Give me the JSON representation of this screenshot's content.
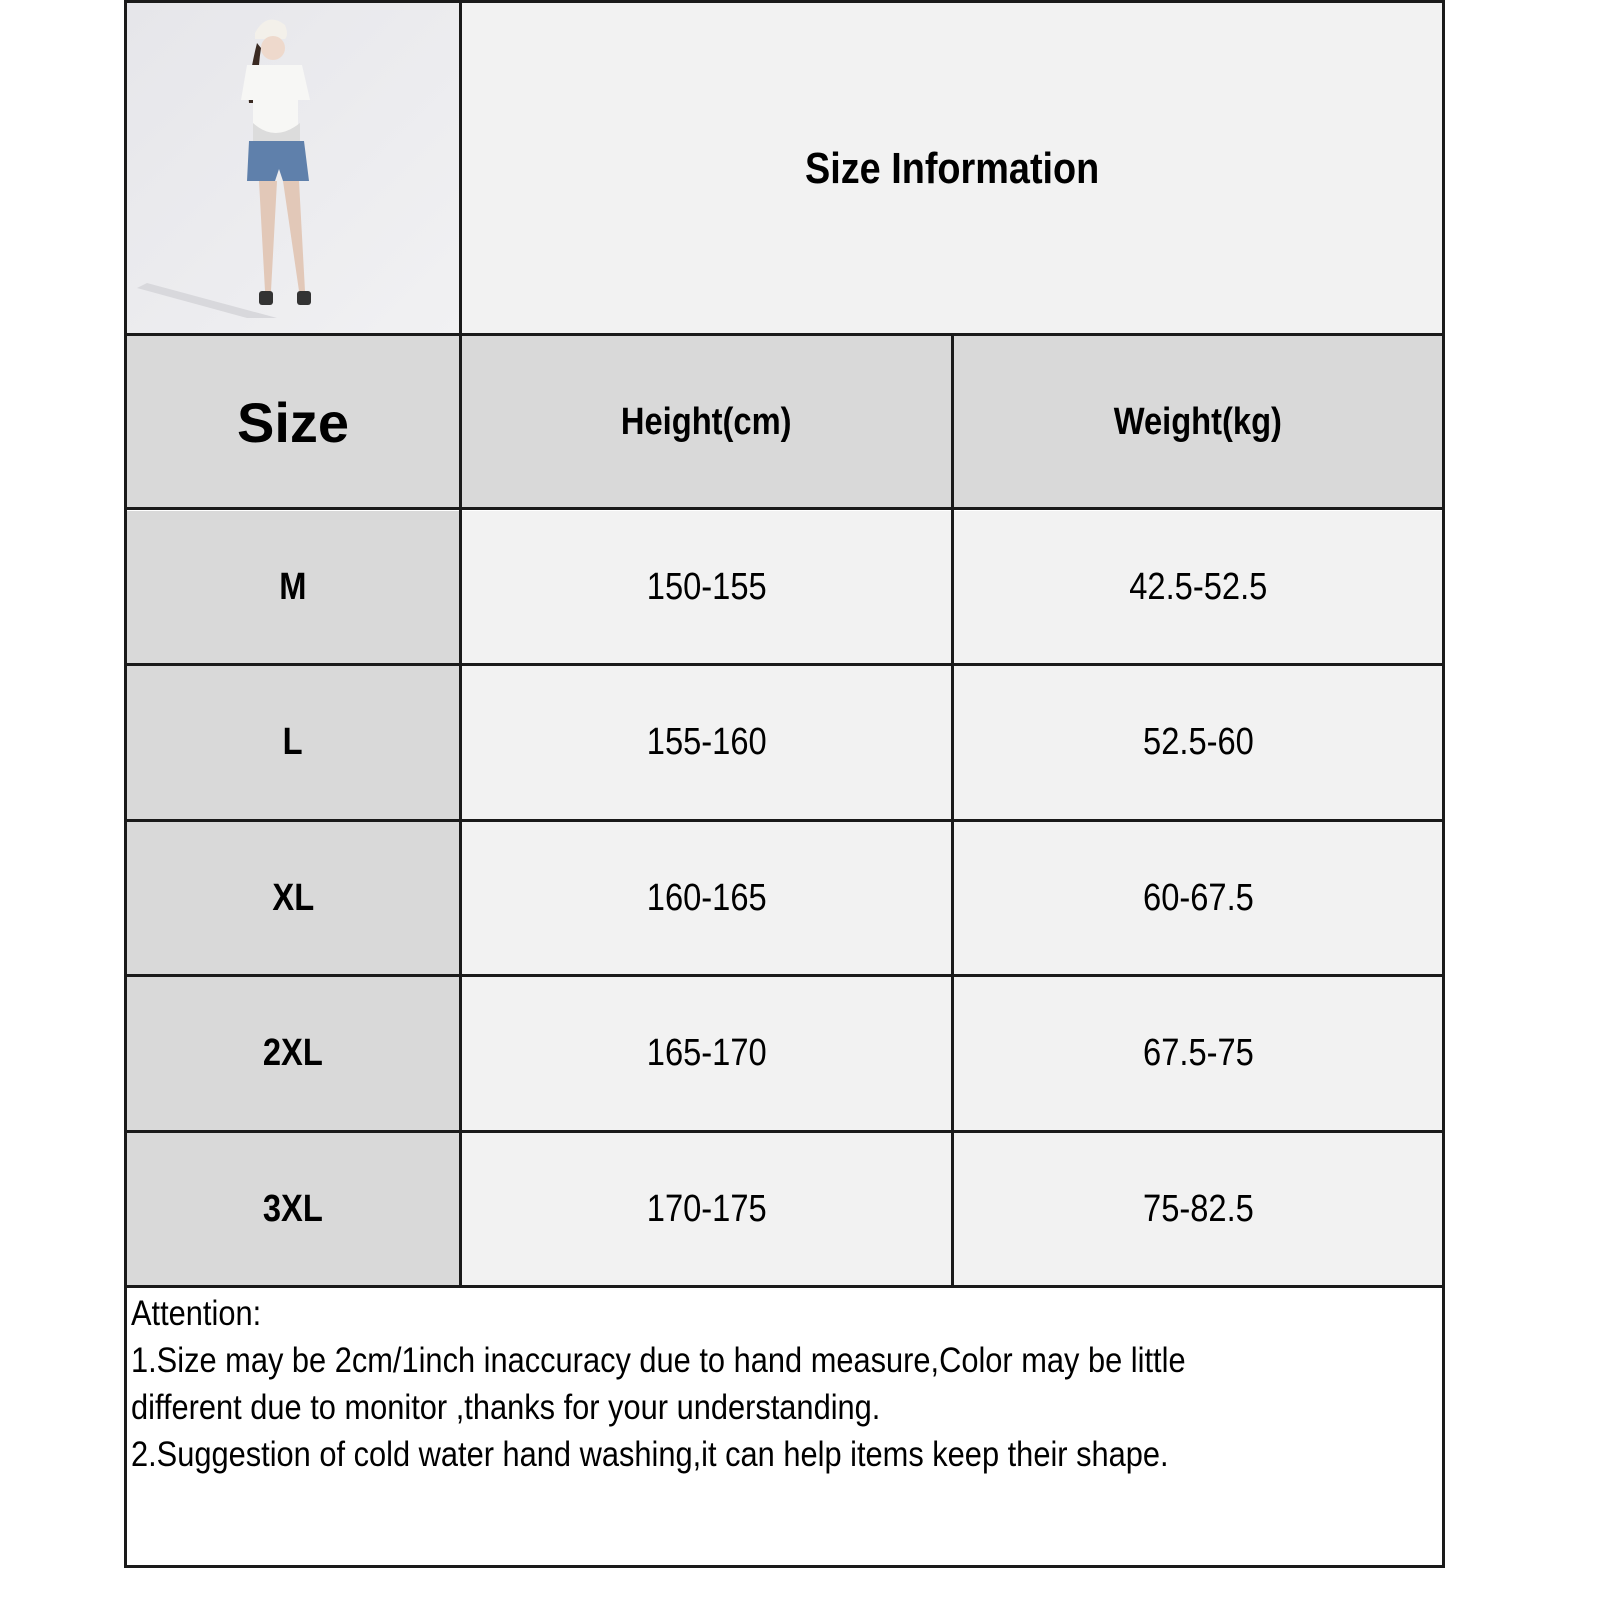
{
  "title": "Size Information",
  "product_photo": {
    "alt": "model wearing white t-shirt and blue denim maternity shorts"
  },
  "columns": [
    "Size",
    "Height(cm)",
    "Weight(kg)"
  ],
  "rows": [
    {
      "size": "M",
      "height": "150-155",
      "weight": "42.5-52.5"
    },
    {
      "size": "L",
      "height": "155-160",
      "weight": "52.5-60"
    },
    {
      "size": "XL",
      "height": "160-165",
      "weight": "60-67.5"
    },
    {
      "size": "2XL",
      "height": "165-170",
      "weight": "67.5-75"
    },
    {
      "size": "3XL",
      "height": "170-175",
      "weight": "75-82.5"
    }
  ],
  "notes": {
    "heading": "Attention:",
    "lines": [
      "1.Size may be 2cm/1inch inaccuracy due to hand measure,Color may be little",
      "different due to monitor ,thanks  for your understanding.",
      "2.Suggestion of cold water hand washing,it can help items keep their shape."
    ]
  },
  "colors": {
    "header_bg": "#d9d9d9",
    "cell_bg": "#f2f2f2",
    "border": "#1a1a1a"
  }
}
